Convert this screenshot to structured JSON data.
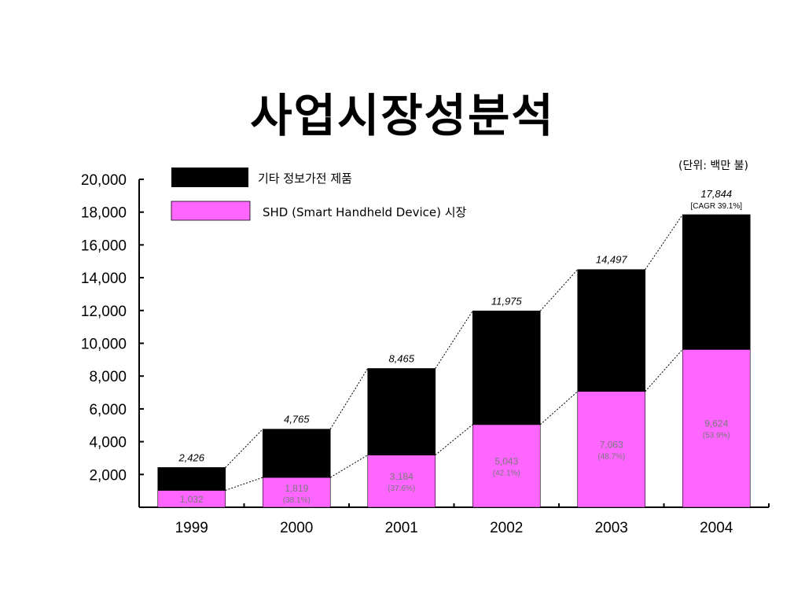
{
  "title": "사업시장성분석",
  "unit_note": "(단위: 백만 불)",
  "chart_data": {
    "type": "bar",
    "stacked": true,
    "categories": [
      "1999",
      "2000",
      "2001",
      "2002",
      "2003",
      "2004"
    ],
    "series": [
      {
        "name": "SHD (Smart Handheld Device) 시장",
        "color": "#ff66ff",
        "values": [
          1032,
          1819,
          3184,
          5043,
          7063,
          9624
        ]
      },
      {
        "name": "기타 정보가전 제품",
        "color": "#000000",
        "values": [
          1394,
          2946,
          5281,
          6932,
          7434,
          8220
        ]
      }
    ],
    "totals": [
      2426,
      4765,
      8465,
      11975,
      14497,
      17844
    ],
    "total_labels": [
      "2,426",
      "4,765",
      "8,465",
      "11,975",
      "14,497",
      "17,844"
    ],
    "shd_labels": [
      "1,032",
      "1,819",
      "3,184",
      "5,043",
      "7,063",
      "9,624"
    ],
    "shd_share_labels": [
      "",
      "(38.1%)",
      "(37.6%)",
      "(42.1%)",
      "(48.7%)",
      "(53.9%)"
    ],
    "cagr_label": "[CAGR 39.1%]",
    "ylim": [
      0,
      20000
    ],
    "yticks": [
      2000,
      4000,
      6000,
      8000,
      10000,
      12000,
      14000,
      16000,
      18000,
      20000
    ],
    "ytick_labels": [
      "2,000",
      "4,000",
      "6,000",
      "8,000",
      "10,000",
      "12,000",
      "14,000",
      "16,000",
      "18,000",
      "20,000"
    ],
    "legend": [
      "기타 정보가전 제품",
      "SHD (Smart Handheld Device) 시장"
    ],
    "legend_position": "top-left",
    "grid": false
  }
}
